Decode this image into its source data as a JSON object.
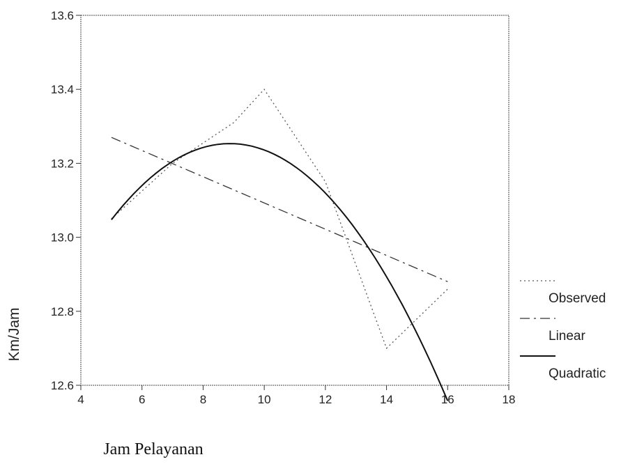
{
  "chart_data": {
    "type": "line",
    "title": "",
    "xlabel": "Jam Pelayanan",
    "ylabel": "Km/Jam",
    "xlim": [
      4,
      18
    ],
    "ylim": [
      12.6,
      13.6
    ],
    "xticks": [
      "4",
      "6",
      "8",
      "10",
      "12",
      "14",
      "16",
      "18"
    ],
    "yticks": [
      "12.6",
      "12.8",
      "13.0",
      "13.2",
      "13.4",
      "13.6"
    ],
    "grid": false,
    "legend_position": "right",
    "series": [
      {
        "name": "Observed",
        "style": "dotted",
        "color": "#555555",
        "x": [
          5,
          7,
          9,
          10,
          12,
          14,
          16
        ],
        "y": [
          13.05,
          13.2,
          13.31,
          13.4,
          13.15,
          12.7,
          12.86
        ]
      },
      {
        "name": "Linear",
        "style": "dashed",
        "color": "#333333",
        "x": [
          5,
          16
        ],
        "y": [
          13.27,
          12.88
        ]
      },
      {
        "name": "Quadratic",
        "style": "solid",
        "color": "#111111",
        "curve": {
          "a": -0.0137,
          "b": 0.2432,
          "c": 12.174
        },
        "x_range": [
          5,
          16
        ]
      }
    ]
  }
}
